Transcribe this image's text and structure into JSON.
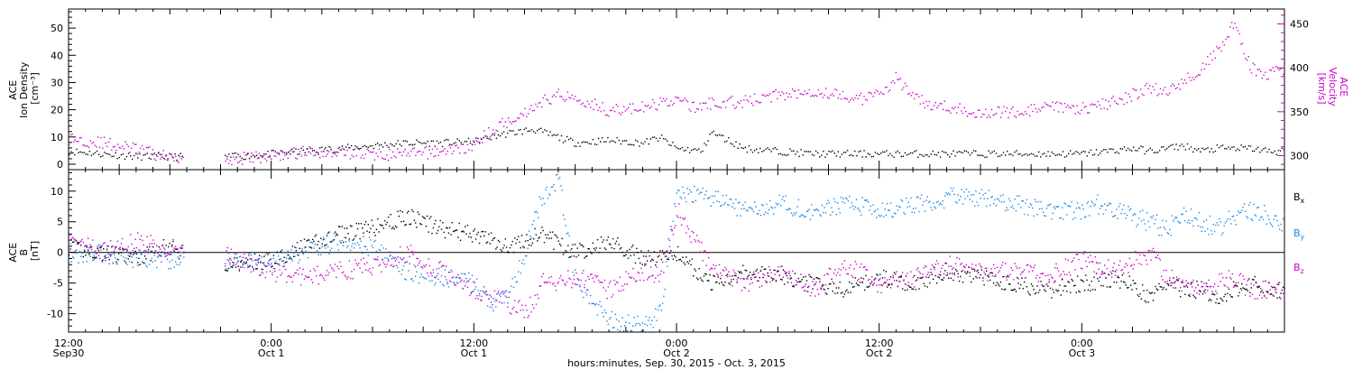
{
  "chart_data": [
    {
      "type": "scatter",
      "panel": "top",
      "left_axis_label": [
        "ACE",
        "Ion Density",
        "[cm⁻³]"
      ],
      "right_axis_label": [
        "ACE",
        "Velocity",
        "[km/s]"
      ],
      "left_ylim": [
        -2,
        57
      ],
      "left_yticks": [
        0,
        10,
        20,
        30,
        40,
        50
      ],
      "right_ylim": [
        284,
        467
      ],
      "right_yticks": [
        300,
        350,
        400,
        450
      ],
      "x_range_hours": [
        0,
        72
      ],
      "colors": {
        "density": "#000000",
        "velocity": "#cc00cc"
      },
      "series": [
        {
          "axis": "left",
          "color": "#000000",
          "x_hours": [
            0,
            2,
            4,
            5.5,
            10,
            12,
            14,
            16,
            18,
            20,
            22,
            24,
            25.5,
            26.5,
            27.5,
            29,
            30,
            32,
            34,
            35,
            36,
            37.5,
            38,
            40,
            42,
            44,
            46,
            48,
            50,
            52,
            54,
            56,
            58,
            60,
            61.5,
            63,
            64,
            65,
            66,
            67,
            68,
            69,
            70,
            71,
            72
          ],
          "y": [
            5,
            4,
            3,
            3,
            3,
            4,
            5,
            6,
            7,
            8,
            8,
            8.5,
            11,
            12,
            13,
            10,
            8,
            9,
            8,
            10,
            6,
            5,
            12,
            6,
            5,
            4,
            4,
            4,
            4,
            4,
            4,
            4,
            4,
            4,
            5,
            6,
            5,
            6,
            7,
            5,
            6,
            6,
            6,
            5,
            5
          ]
        },
        {
          "axis": "right",
          "color": "#cc00cc",
          "x_hours": [
            0,
            2,
            4,
            5.5,
            10,
            12,
            14,
            16,
            18,
            20,
            22,
            24,
            25,
            26,
            27,
            28,
            29,
            30,
            32,
            34,
            35,
            36,
            37,
            38,
            40,
            42,
            44,
            46,
            47,
            48,
            49,
            50,
            52,
            54,
            56,
            58,
            60,
            61,
            62,
            63,
            64,
            65,
            66,
            67,
            68,
            69,
            70,
            71,
            72
          ],
          "y": [
            320,
            315,
            308,
            300,
            297,
            300,
            305,
            305,
            302,
            302,
            305,
            312,
            330,
            340,
            350,
            362,
            370,
            367,
            352,
            355,
            360,
            365,
            355,
            360,
            362,
            370,
            375,
            368,
            365,
            370,
            390,
            365,
            355,
            350,
            350,
            355,
            355,
            358,
            362,
            370,
            378,
            372,
            385,
            400,
            420,
            450,
            400,
            392,
            400
          ]
        }
      ]
    },
    {
      "type": "scatter",
      "panel": "bottom",
      "left_axis_label": [
        "ACE",
        "B",
        "[nT]"
      ],
      "left_ylim": [
        -13,
        13.5
      ],
      "left_yticks": [
        -10,
        -5,
        0,
        5,
        10
      ],
      "x_range_hours": [
        0,
        72
      ],
      "x_tick_labels": [
        {
          "hour": 0,
          "time": "12:00",
          "date": "Sep30"
        },
        {
          "hour": 12,
          "time": "0:00",
          "date": "Oct 1"
        },
        {
          "hour": 24,
          "time": "12:00",
          "date": "Oct 1"
        },
        {
          "hour": 36,
          "time": "0:00",
          "date": "Oct 2"
        },
        {
          "hour": 48,
          "time": "12:00",
          "date": "Oct 2"
        },
        {
          "hour": 60,
          "time": "0:00",
          "date": "Oct 3"
        }
      ],
      "xlabel": "hours:minutes, Sep. 30, 2015 - Oct. 3, 2015",
      "legend": [
        {
          "label": "B",
          "sub": "x",
          "color": "#000000"
        },
        {
          "label": "B",
          "sub": "y",
          "color": "#1a88e6"
        },
        {
          "label": "B",
          "sub": "z",
          "color": "#cc00cc"
        }
      ],
      "series": [
        {
          "name": "Bx",
          "color": "#000000",
          "x_hours": [
            0,
            2,
            4,
            5.5,
            10,
            12,
            14,
            16,
            18,
            20,
            22,
            24,
            26,
            28,
            30,
            32,
            34,
            36,
            38,
            40,
            42,
            44,
            46,
            48,
            50,
            52,
            54,
            56,
            58,
            60,
            62,
            64,
            65,
            66,
            67,
            68,
            69,
            70,
            71,
            72
          ],
          "y": [
            1,
            0,
            -1,
            1,
            -2,
            -1,
            1,
            3,
            4,
            6,
            4,
            3,
            1,
            3,
            0,
            2,
            -1,
            0,
            -5,
            -3,
            -4,
            -5,
            -6,
            -4,
            -5,
            -3,
            -4,
            -5,
            -6,
            -5,
            -4,
            -7,
            -5,
            -6,
            -6,
            -7,
            -6,
            -5,
            -6,
            -6
          ]
        },
        {
          "name": "By",
          "color": "#1a88e6",
          "x_hours": [
            0,
            2,
            4,
            5.5,
            10,
            12,
            14,
            16,
            18,
            20,
            22,
            24,
            25,
            26,
            27,
            28,
            29,
            30,
            32,
            34,
            35,
            36,
            38,
            40,
            42,
            44,
            46,
            48,
            50,
            52,
            54,
            56,
            58,
            60,
            61,
            62,
            63,
            64,
            65,
            66,
            67,
            68,
            69,
            70,
            71,
            72
          ],
          "y": [
            0,
            0,
            -1,
            -1,
            -1,
            -2,
            0,
            2,
            1,
            -3,
            -4,
            -5,
            -8,
            -7,
            0,
            9,
            12,
            -5,
            -11,
            -12,
            -10,
            10,
            9,
            7,
            8,
            7,
            8,
            7,
            8,
            9,
            9,
            8,
            7,
            7,
            8,
            7,
            6,
            5,
            4,
            6,
            5,
            4,
            6,
            7,
            6,
            5
          ]
        },
        {
          "name": "Bz",
          "color": "#cc00cc",
          "x_hours": [
            0,
            2,
            4,
            5.5,
            10,
            12,
            14,
            16,
            18,
            20,
            22,
            24,
            26,
            27,
            28,
            30,
            32,
            34,
            35,
            36,
            38,
            40,
            42,
            44,
            46,
            48,
            50,
            52,
            54,
            56,
            58,
            60,
            62,
            64,
            65,
            66,
            67,
            68,
            69,
            70,
            71,
            72
          ],
          "y": [
            2,
            0,
            2,
            1,
            -1,
            -3,
            -4,
            -3,
            -2,
            0,
            -3,
            -6,
            -8,
            -10,
            -5,
            -4,
            -6,
            -3,
            -4,
            7,
            -2,
            -5,
            -3,
            -6,
            -2,
            -5,
            -4,
            -2,
            -3,
            -3,
            -4,
            -1,
            -3,
            0,
            -4,
            -5,
            -6,
            -5,
            -4,
            -6,
            -6,
            -6
          ]
        }
      ]
    }
  ]
}
